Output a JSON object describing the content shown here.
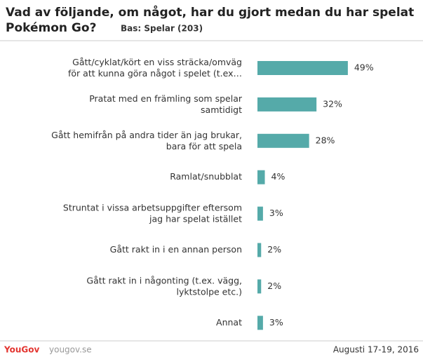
{
  "chart_data": {
    "type": "bar",
    "orientation": "horizontal",
    "title": "Vad av följande, om något, har du gjort medan du har spelat\nPokémon Go?",
    "subtitle": "Bas: Spelar (203)",
    "categories": [
      "Gått/cyklat/kört en viss sträcka/omväg\nför att kunna göra något i spelet (t.ex…",
      "Pratat med en främling som spelar\nsamtidigt",
      "Gått hemifrån på andra tider än jag brukar,\nbara för att spela",
      "Ramlat/snubblat",
      "Struntat i vissa arbetsuppgifter eftersom\njag har spelat istället",
      "Gått rakt in i en annan person",
      "Gått rakt in i någonting (t.ex. vägg,\nlyktstolpe etc.)",
      "Annat"
    ],
    "values": [
      49,
      32,
      28,
      4,
      3,
      2,
      2,
      3
    ],
    "value_labels": [
      "49%",
      "32%",
      "28%",
      "4%",
      "3%",
      "2%",
      "2%",
      "3%"
    ],
    "color": "#55aaa9",
    "brand": "YouGov",
    "source": "yougov.se",
    "date": "Augusti 17-19, 2016"
  }
}
